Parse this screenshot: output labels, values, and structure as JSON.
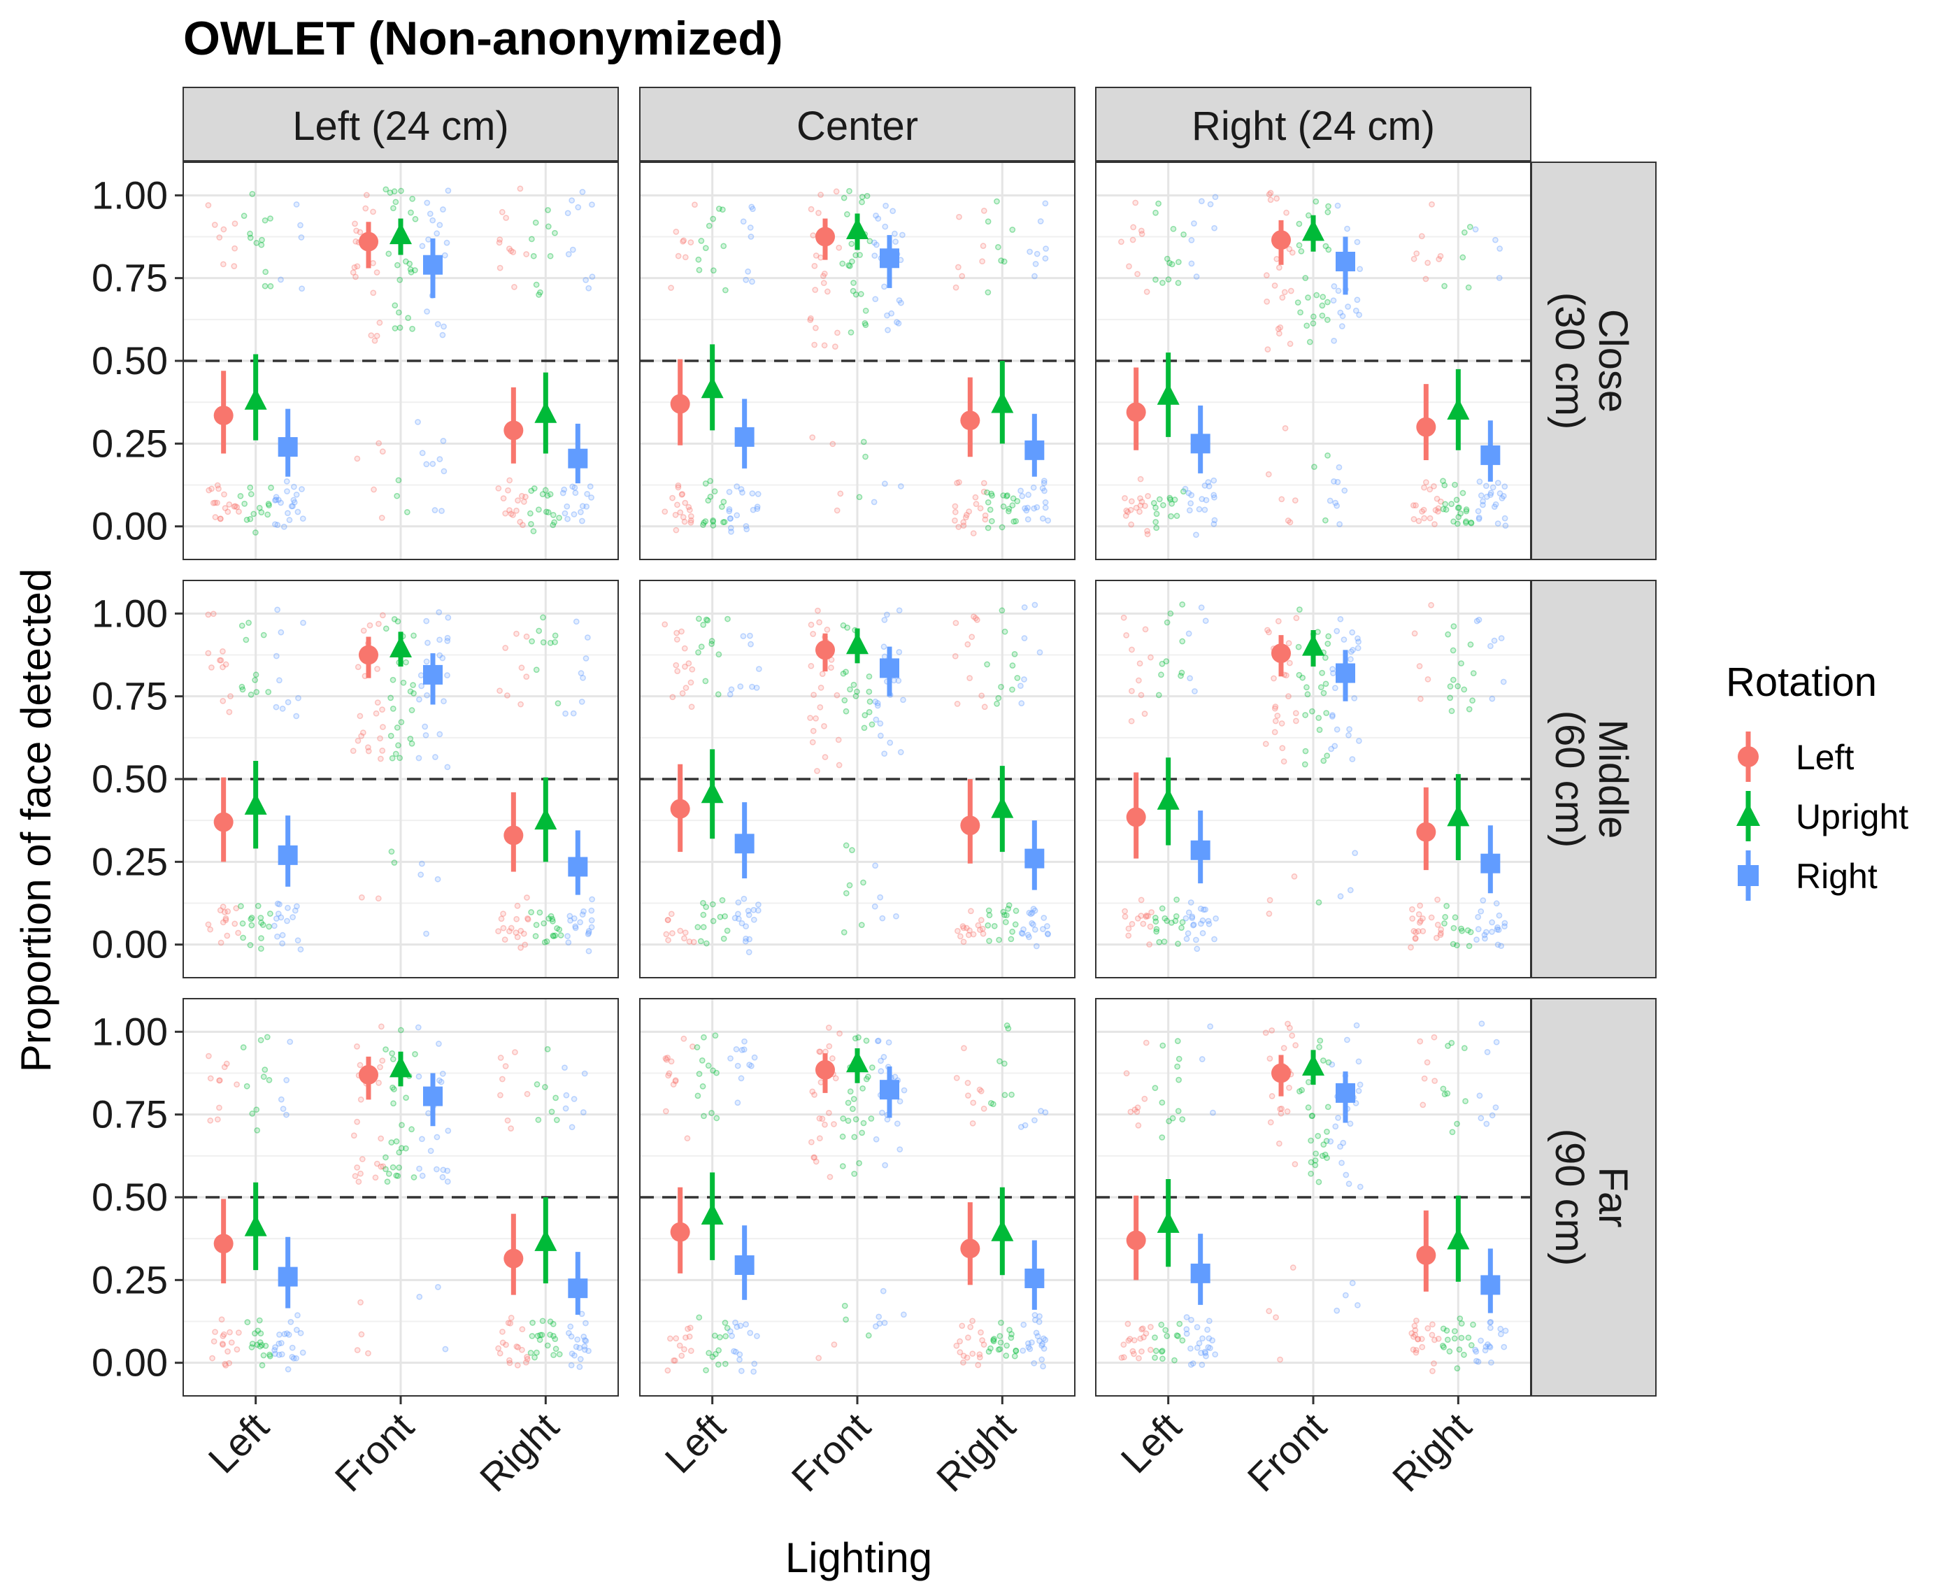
{
  "chart_data": {
    "type": "scatter",
    "title": "OWLET (Non-anonymized)",
    "xlabel": "Lighting",
    "ylabel": "Proportion of face detected",
    "ylim": [
      -0.1,
      1.1
    ],
    "yticks": [
      "0.00",
      "0.25",
      "0.50",
      "0.75",
      "1.00"
    ],
    "categories": [
      "Left",
      "Front",
      "Right"
    ],
    "reference_line": 0.5,
    "legend": {
      "title": "Rotation",
      "placement": "right"
    },
    "column_facets": [
      "Left (24 cm)",
      "Center",
      "Right (24 cm)"
    ],
    "row_facets": [
      [
        "Close",
        "(30 cm)"
      ],
      [
        "Middle",
        "(60 cm)"
      ],
      [
        "Far",
        "(90 cm)"
      ]
    ],
    "series": [
      {
        "name": "Left",
        "color": "#F8766D",
        "shape": "circle"
      },
      {
        "name": "Upright",
        "color": "#00BA38",
        "shape": "triangle"
      },
      {
        "name": "Right",
        "color": "#619CFF",
        "shape": "square"
      }
    ],
    "panels": [
      {
        "row": 0,
        "col": 0,
        "values": [
          [
            0.335,
            0.38,
            0.24
          ],
          [
            0.86,
            0.88,
            0.79
          ],
          [
            0.29,
            0.34,
            0.205
          ]
        ],
        "low": [
          [
            0.22,
            0.26,
            0.15
          ],
          [
            0.78,
            0.82,
            0.69
          ],
          [
            0.19,
            0.22,
            0.13
          ]
        ],
        "high": [
          [
            0.47,
            0.52,
            0.355
          ],
          [
            0.92,
            0.93,
            0.87
          ],
          [
            0.42,
            0.465,
            0.31
          ]
        ]
      },
      {
        "row": 0,
        "col": 1,
        "values": [
          [
            0.37,
            0.415,
            0.27
          ],
          [
            0.875,
            0.895,
            0.81
          ],
          [
            0.32,
            0.37,
            0.23
          ]
        ],
        "low": [
          [
            0.245,
            0.29,
            0.175
          ],
          [
            0.805,
            0.835,
            0.72
          ],
          [
            0.21,
            0.25,
            0.15
          ]
        ],
        "high": [
          [
            0.505,
            0.55,
            0.385
          ],
          [
            0.93,
            0.945,
            0.88
          ],
          [
            0.45,
            0.5,
            0.34
          ]
        ]
      },
      {
        "row": 0,
        "col": 2,
        "values": [
          [
            0.345,
            0.395,
            0.25
          ],
          [
            0.865,
            0.89,
            0.8
          ],
          [
            0.3,
            0.35,
            0.215
          ]
        ],
        "low": [
          [
            0.23,
            0.27,
            0.16
          ],
          [
            0.79,
            0.83,
            0.7
          ],
          [
            0.2,
            0.23,
            0.135
          ]
        ],
        "high": [
          [
            0.48,
            0.525,
            0.365
          ],
          [
            0.925,
            0.94,
            0.875
          ],
          [
            0.43,
            0.475,
            0.32
          ]
        ]
      },
      {
        "row": 1,
        "col": 0,
        "values": [
          [
            0.37,
            0.42,
            0.27
          ],
          [
            0.875,
            0.895,
            0.815
          ],
          [
            0.33,
            0.375,
            0.235
          ]
        ],
        "low": [
          [
            0.25,
            0.29,
            0.175
          ],
          [
            0.805,
            0.84,
            0.725
          ],
          [
            0.22,
            0.25,
            0.15
          ]
        ],
        "high": [
          [
            0.505,
            0.555,
            0.39
          ],
          [
            0.93,
            0.945,
            0.88
          ],
          [
            0.46,
            0.505,
            0.345
          ]
        ]
      },
      {
        "row": 1,
        "col": 1,
        "values": [
          [
            0.41,
            0.455,
            0.305
          ],
          [
            0.89,
            0.905,
            0.835
          ],
          [
            0.36,
            0.41,
            0.26
          ]
        ],
        "low": [
          [
            0.28,
            0.32,
            0.2
          ],
          [
            0.825,
            0.85,
            0.75
          ],
          [
            0.245,
            0.28,
            0.165
          ]
        ],
        "high": [
          [
            0.545,
            0.59,
            0.43
          ],
          [
            0.94,
            0.955,
            0.9
          ],
          [
            0.5,
            0.54,
            0.375
          ]
        ]
      },
      {
        "row": 1,
        "col": 2,
        "values": [
          [
            0.385,
            0.435,
            0.285
          ],
          [
            0.88,
            0.9,
            0.82
          ],
          [
            0.34,
            0.385,
            0.245
          ]
        ],
        "low": [
          [
            0.26,
            0.3,
            0.185
          ],
          [
            0.81,
            0.84,
            0.735
          ],
          [
            0.225,
            0.255,
            0.155
          ]
        ],
        "high": [
          [
            0.52,
            0.565,
            0.405
          ],
          [
            0.935,
            0.95,
            0.89
          ],
          [
            0.475,
            0.515,
            0.36
          ]
        ]
      },
      {
        "row": 2,
        "col": 0,
        "values": [
          [
            0.36,
            0.41,
            0.26
          ],
          [
            0.87,
            0.89,
            0.805
          ],
          [
            0.315,
            0.365,
            0.225
          ]
        ],
        "low": [
          [
            0.24,
            0.28,
            0.165
          ],
          [
            0.795,
            0.835,
            0.715
          ],
          [
            0.205,
            0.24,
            0.145
          ]
        ],
        "high": [
          [
            0.495,
            0.545,
            0.38
          ],
          [
            0.925,
            0.94,
            0.875
          ],
          [
            0.45,
            0.5,
            0.335
          ]
        ]
      },
      {
        "row": 2,
        "col": 1,
        "values": [
          [
            0.395,
            0.445,
            0.295
          ],
          [
            0.885,
            0.905,
            0.825
          ],
          [
            0.345,
            0.395,
            0.255
          ]
        ],
        "low": [
          [
            0.27,
            0.31,
            0.19
          ],
          [
            0.815,
            0.845,
            0.74
          ],
          [
            0.235,
            0.265,
            0.16
          ]
        ],
        "high": [
          [
            0.53,
            0.575,
            0.415
          ],
          [
            0.935,
            0.95,
            0.895
          ],
          [
            0.485,
            0.53,
            0.37
          ]
        ]
      },
      {
        "row": 2,
        "col": 2,
        "values": [
          [
            0.37,
            0.42,
            0.27
          ],
          [
            0.875,
            0.895,
            0.815
          ],
          [
            0.325,
            0.37,
            0.235
          ]
        ],
        "low": [
          [
            0.25,
            0.29,
            0.175
          ],
          [
            0.805,
            0.84,
            0.725
          ],
          [
            0.215,
            0.245,
            0.15
          ]
        ],
        "high": [
          [
            0.505,
            0.555,
            0.39
          ],
          [
            0.93,
            0.945,
            0.88
          ],
          [
            0.46,
            0.505,
            0.345
          ]
        ]
      }
    ]
  }
}
